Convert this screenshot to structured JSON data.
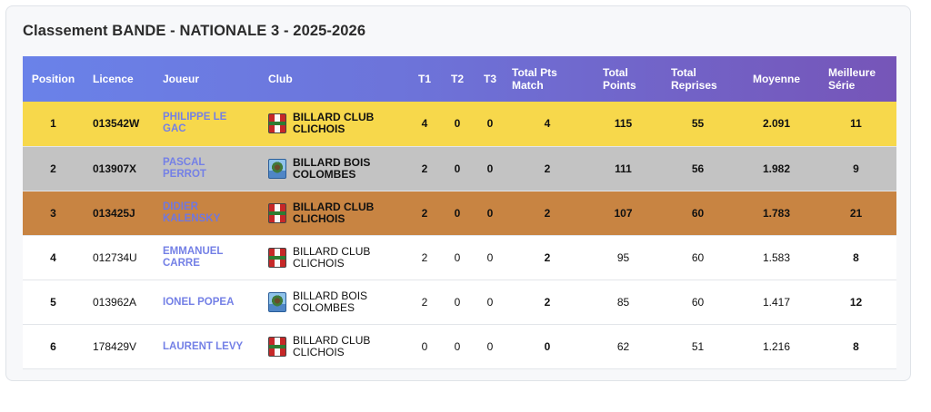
{
  "title": "Classement BANDE - NATIONALE 3 - 2025-2026",
  "headers": {
    "position": "Position",
    "licence": "Licence",
    "joueur": "Joueur",
    "club": "Club",
    "t1": "T1",
    "t2": "T2",
    "t3": "T3",
    "total_pts_match": "Total Pts Match",
    "total_points": "Total Points",
    "total_reprises": "Total Reprises",
    "moyenne": "Moyenne",
    "meilleure_serie": "Meilleure Série"
  },
  "rows": [
    {
      "position": "1",
      "licence": "013542W",
      "joueur": "PHILIPPE LE GAC",
      "club": "BILLARD CLUB CLICHOIS",
      "club_logo": "clichois-logo-icon",
      "t1": "4",
      "t2": "0",
      "t3": "0",
      "total_pts_match": "4",
      "total_points": "115",
      "total_reprises": "55",
      "moyenne": "2.091",
      "meilleure_serie": "11",
      "highlight": "gold",
      "highlight_color": "#f7d84b"
    },
    {
      "position": "2",
      "licence": "013907X",
      "joueur": "PASCAL PERROT",
      "club": "BILLARD BOIS COLOMBES",
      "club_logo": "bois-colombes-logo-icon",
      "t1": "2",
      "t2": "0",
      "t3": "0",
      "total_pts_match": "2",
      "total_points": "111",
      "total_reprises": "56",
      "moyenne": "1.982",
      "meilleure_serie": "9",
      "highlight": "silver",
      "highlight_color": "#c3c3c3"
    },
    {
      "position": "3",
      "licence": "013425J",
      "joueur": "DIDIER KALENSKY",
      "club": "BILLARD CLUB CLICHOIS",
      "club_logo": "clichois-logo-icon",
      "t1": "2",
      "t2": "0",
      "t3": "0",
      "total_pts_match": "2",
      "total_points": "107",
      "total_reprises": "60",
      "moyenne": "1.783",
      "meilleure_serie": "21",
      "highlight": "bronze",
      "highlight_color": "#c88442"
    },
    {
      "position": "4",
      "licence": "012734U",
      "joueur": "EMMANUEL CARRE",
      "club": "BILLARD CLUB CLICHOIS",
      "club_logo": "clichois-logo-icon",
      "t1": "2",
      "t2": "0",
      "t3": "0",
      "total_pts_match": "2",
      "total_points": "95",
      "total_reprises": "60",
      "moyenne": "1.583",
      "meilleure_serie": "8",
      "highlight": "plain"
    },
    {
      "position": "5",
      "licence": "013962A",
      "joueur": "IONEL POPEA",
      "club": "BILLARD BOIS COLOMBES",
      "club_logo": "bois-colombes-logo-icon",
      "t1": "2",
      "t2": "0",
      "t3": "0",
      "total_pts_match": "2",
      "total_points": "85",
      "total_reprises": "60",
      "moyenne": "1.417",
      "meilleure_serie": "12",
      "highlight": "plain"
    },
    {
      "position": "6",
      "licence": "178429V",
      "joueur": "LAURENT LEVY",
      "club": "BILLARD CLUB CLICHOIS",
      "club_logo": "clichois-logo-icon",
      "t1": "0",
      "t2": "0",
      "t3": "0",
      "total_pts_match": "0",
      "total_points": "62",
      "total_reprises": "51",
      "moyenne": "1.216",
      "meilleure_serie": "8",
      "highlight": "plain"
    }
  ],
  "colors": {
    "header_gradient_start": "#6a82e9",
    "header_gradient_end": "#7655b8",
    "player_link": "#7480e6"
  }
}
